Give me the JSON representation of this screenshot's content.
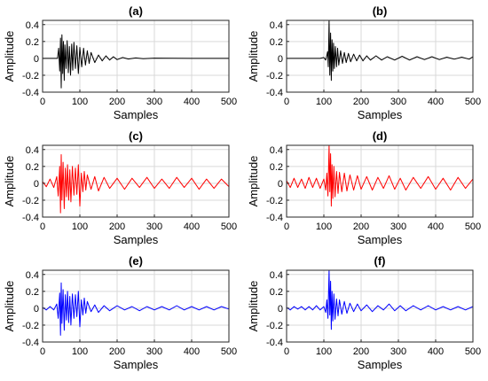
{
  "chart_data": [
    {
      "type": "line",
      "title": "(a)",
      "xlabel": "Samples",
      "ylabel": "Amplitude",
      "xlim": [
        0,
        500
      ],
      "ylim": [
        -0.4,
        0.45
      ],
      "xticks": [
        "0",
        "100",
        "200",
        "300",
        "400",
        "500"
      ],
      "yticks": [
        "-0.4",
        "-0.2",
        "0",
        "0.2",
        "0.4"
      ],
      "grid": true,
      "color": "#000000",
      "series": [
        {
          "x": [
            0,
            40,
            43,
            46,
            48,
            50,
            52,
            54,
            56,
            58,
            60,
            63,
            66,
            69,
            72,
            75,
            78,
            81,
            84,
            88,
            92,
            96,
            100,
            105,
            110,
            115,
            120,
            125,
            130,
            140,
            150,
            160,
            170,
            180,
            190,
            200,
            215,
            230,
            250,
            270,
            300,
            350,
            400,
            450,
            500
          ],
          "y": [
            0,
            0,
            0.12,
            -0.15,
            0.24,
            -0.35,
            0.28,
            -0.18,
            0.2,
            -0.26,
            0.16,
            -0.12,
            0.21,
            -0.17,
            0.14,
            -0.2,
            0.17,
            -0.14,
            0.19,
            -0.12,
            0.15,
            -0.18,
            0.13,
            -0.1,
            0.12,
            -0.08,
            0.09,
            -0.06,
            0.07,
            -0.05,
            0.04,
            -0.03,
            0.03,
            -0.02,
            0.02,
            -0.015,
            0.01,
            -0.008,
            0.005,
            -0.004,
            0.003,
            0.001,
            0,
            0,
            0
          ]
        }
      ]
    },
    {
      "type": "line",
      "title": "(b)",
      "xlabel": "Samples",
      "ylabel": "Amplitude",
      "xlim": [
        0,
        500
      ],
      "ylim": [
        -0.4,
        0.45
      ],
      "xticks": [
        "0",
        "100",
        "200",
        "300",
        "400",
        "500"
      ],
      "yticks": [
        "-0.4",
        "-0.2",
        "0",
        "0.2",
        "0.4"
      ],
      "grid": true,
      "color": "#000000",
      "series": [
        {
          "x": [
            0,
            90,
            100,
            105,
            108,
            110,
            112,
            114,
            116,
            118,
            120,
            122,
            124,
            126,
            128,
            131,
            134,
            137,
            140,
            145,
            150,
            155,
            160,
            166,
            172,
            180,
            188,
            196,
            205,
            215,
            225,
            240,
            255,
            270,
            290,
            310,
            330,
            350,
            370,
            390,
            410,
            430,
            450,
            470,
            490,
            500
          ],
          "y": [
            0,
            0,
            0.01,
            -0.02,
            0.04,
            0.08,
            -0.1,
            0.45,
            -0.2,
            0.3,
            -0.26,
            0.22,
            -0.15,
            0.18,
            -0.12,
            0.14,
            -0.1,
            0.12,
            -0.08,
            0.09,
            -0.06,
            0.07,
            -0.05,
            0.06,
            -0.04,
            0.05,
            -0.03,
            0.04,
            -0.03,
            0.03,
            -0.02,
            0.03,
            -0.02,
            0.02,
            -0.02,
            0.025,
            -0.02,
            0.02,
            -0.015,
            0.02,
            -0.015,
            0.015,
            -0.01,
            0.015,
            -0.01,
            0.02
          ]
        }
      ]
    },
    {
      "type": "line",
      "title": "(c)",
      "xlabel": "Samples",
      "ylabel": "Amplitude",
      "xlim": [
        0,
        500
      ],
      "ylim": [
        -0.4,
        0.45
      ],
      "xticks": [
        "0",
        "100",
        "200",
        "300",
        "400",
        "500"
      ],
      "yticks": [
        "-0.4",
        "-0.2",
        "0",
        "0.2",
        "0.4"
      ],
      "grid": true,
      "color": "#ff0000",
      "series": [
        {
          "x": [
            0,
            10,
            20,
            30,
            38,
            42,
            46,
            48,
            50,
            52,
            55,
            58,
            61,
            64,
            67,
            70,
            73,
            76,
            80,
            84,
            88,
            92,
            96,
            100,
            104,
            108,
            112,
            116,
            120,
            130,
            140,
            150,
            165,
            180,
            200,
            220,
            240,
            260,
            280,
            300,
            320,
            340,
            360,
            380,
            400,
            420,
            440,
            460,
            480,
            500
          ],
          "y": [
            0.02,
            -0.04,
            0.05,
            -0.05,
            0.08,
            -0.15,
            0.2,
            -0.35,
            0.34,
            -0.2,
            0.25,
            -0.3,
            0.18,
            -0.16,
            0.22,
            -0.2,
            0.16,
            -0.22,
            0.2,
            -0.14,
            0.18,
            -0.13,
            0.22,
            -0.27,
            0.12,
            -0.1,
            0.14,
            -0.08,
            0.1,
            -0.07,
            0.08,
            -0.09,
            0.07,
            -0.06,
            0.06,
            -0.07,
            0.06,
            -0.05,
            0.07,
            -0.06,
            0.05,
            -0.06,
            0.07,
            -0.05,
            0.06,
            -0.07,
            0.05,
            -0.06,
            0.05,
            -0.04
          ]
        }
      ]
    },
    {
      "type": "line",
      "title": "(d)",
      "xlabel": "Samples",
      "ylabel": "Amplitude",
      "xlim": [
        0,
        500
      ],
      "ylim": [
        -0.4,
        0.45
      ],
      "xticks": [
        "0",
        "100",
        "200",
        "300",
        "400",
        "500"
      ],
      "yticks": [
        "-0.4",
        "-0.2",
        "0",
        "0.2",
        "0.4"
      ],
      "grid": true,
      "color": "#ff0000",
      "series": [
        {
          "x": [
            0,
            10,
            20,
            30,
            40,
            50,
            60,
            70,
            80,
            90,
            100,
            105,
            108,
            111,
            114,
            116,
            118,
            120,
            122,
            124,
            127,
            130,
            134,
            138,
            142,
            148,
            155,
            162,
            170,
            180,
            190,
            200,
            215,
            230,
            245,
            260,
            275,
            290,
            305,
            320,
            340,
            360,
            380,
            400,
            420,
            440,
            460,
            480,
            500
          ],
          "y": [
            0.03,
            -0.05,
            0.06,
            -0.05,
            0.05,
            -0.06,
            0.07,
            -0.05,
            0.06,
            -0.06,
            0.05,
            -0.08,
            0.12,
            -0.15,
            0.45,
            -0.1,
            0.35,
            -0.27,
            0.22,
            -0.18,
            0.2,
            -0.16,
            0.14,
            -0.12,
            0.13,
            -0.1,
            0.12,
            -0.09,
            0.1,
            -0.08,
            0.09,
            -0.07,
            0.08,
            -0.08,
            0.07,
            -0.06,
            0.09,
            -0.07,
            0.06,
            -0.08,
            0.07,
            -0.06,
            0.08,
            -0.07,
            0.06,
            -0.08,
            0.07,
            -0.06,
            0.05
          ]
        }
      ]
    },
    {
      "type": "line",
      "title": "(e)",
      "xlabel": "Samples",
      "ylabel": "Amplitude",
      "xlim": [
        0,
        500
      ],
      "ylim": [
        -0.4,
        0.45
      ],
      "xticks": [
        "0",
        "100",
        "200",
        "300",
        "400",
        "500"
      ],
      "yticks": [
        "-0.4",
        "-0.2",
        "0",
        "0.2",
        "0.4"
      ],
      "grid": true,
      "color": "#0000ff",
      "series": [
        {
          "x": [
            0,
            10,
            20,
            30,
            38,
            42,
            46,
            48,
            50,
            52,
            55,
            58,
            61,
            64,
            67,
            70,
            73,
            76,
            80,
            84,
            88,
            92,
            96,
            100,
            104,
            108,
            112,
            116,
            120,
            130,
            140,
            150,
            165,
            180,
            200,
            220,
            240,
            260,
            280,
            300,
            320,
            340,
            360,
            380,
            400,
            420,
            440,
            460,
            480,
            500
          ],
          "y": [
            0.01,
            -0.02,
            0.02,
            -0.02,
            0.05,
            -0.12,
            0.18,
            -0.32,
            0.3,
            -0.18,
            0.22,
            -0.26,
            0.16,
            -0.14,
            0.2,
            -0.17,
            0.14,
            -0.2,
            0.17,
            -0.12,
            0.16,
            -0.1,
            0.2,
            -0.22,
            0.1,
            -0.08,
            0.12,
            -0.06,
            0.08,
            -0.04,
            0.04,
            -0.05,
            0.03,
            -0.03,
            0.03,
            -0.02,
            0.02,
            -0.03,
            0.02,
            -0.02,
            0.02,
            -0.02,
            0.03,
            -0.02,
            0.02,
            -0.02,
            0.02,
            -0.02,
            0.02,
            -0.01
          ]
        }
      ]
    },
    {
      "type": "line",
      "title": "(f)",
      "xlabel": "Samples",
      "ylabel": "Amplitude",
      "xlim": [
        0,
        500
      ],
      "ylim": [
        -0.4,
        0.45
      ],
      "xticks": [
        "0",
        "100",
        "200",
        "300",
        "400",
        "500"
      ],
      "yticks": [
        "-0.4",
        "-0.2",
        "0",
        "0.2",
        "0.4"
      ],
      "grid": true,
      "color": "#0000ff",
      "series": [
        {
          "x": [
            0,
            10,
            20,
            30,
            40,
            50,
            60,
            70,
            80,
            90,
            100,
            105,
            108,
            111,
            114,
            116,
            118,
            120,
            122,
            124,
            127,
            130,
            134,
            138,
            142,
            148,
            155,
            162,
            170,
            180,
            190,
            200,
            215,
            230,
            245,
            260,
            275,
            290,
            305,
            320,
            340,
            360,
            380,
            400,
            420,
            440,
            460,
            480,
            500
          ],
          "y": [
            0.01,
            -0.02,
            0.02,
            -0.01,
            0.02,
            -0.02,
            0.02,
            -0.02,
            0.03,
            -0.02,
            0.02,
            -0.05,
            0.1,
            -0.12,
            0.45,
            -0.08,
            0.32,
            -0.25,
            0.2,
            -0.15,
            0.17,
            -0.13,
            0.11,
            -0.09,
            0.1,
            -0.07,
            0.08,
            -0.06,
            0.06,
            -0.04,
            0.05,
            -0.03,
            0.04,
            -0.04,
            0.03,
            -0.02,
            0.05,
            -0.03,
            0.03,
            -0.03,
            0.03,
            -0.02,
            0.03,
            -0.02,
            0.02,
            -0.02,
            0.02,
            -0.02,
            0.02
          ]
        }
      ]
    }
  ]
}
